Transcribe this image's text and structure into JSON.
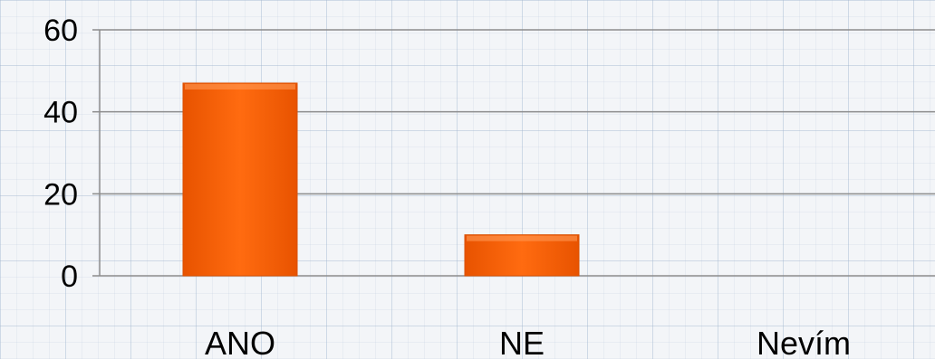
{
  "chart_data": {
    "type": "bar",
    "categories": [
      "ANO",
      "NE",
      "Nevím"
    ],
    "values": [
      47,
      10,
      0
    ],
    "title": "",
    "xlabel": "",
    "ylabel": "",
    "ylim": [
      0,
      60
    ],
    "yticks": [
      0,
      20,
      40,
      60
    ],
    "grid": true,
    "bar_color": "#ff6a0c",
    "bar_edge_color": "#d94f00"
  }
}
